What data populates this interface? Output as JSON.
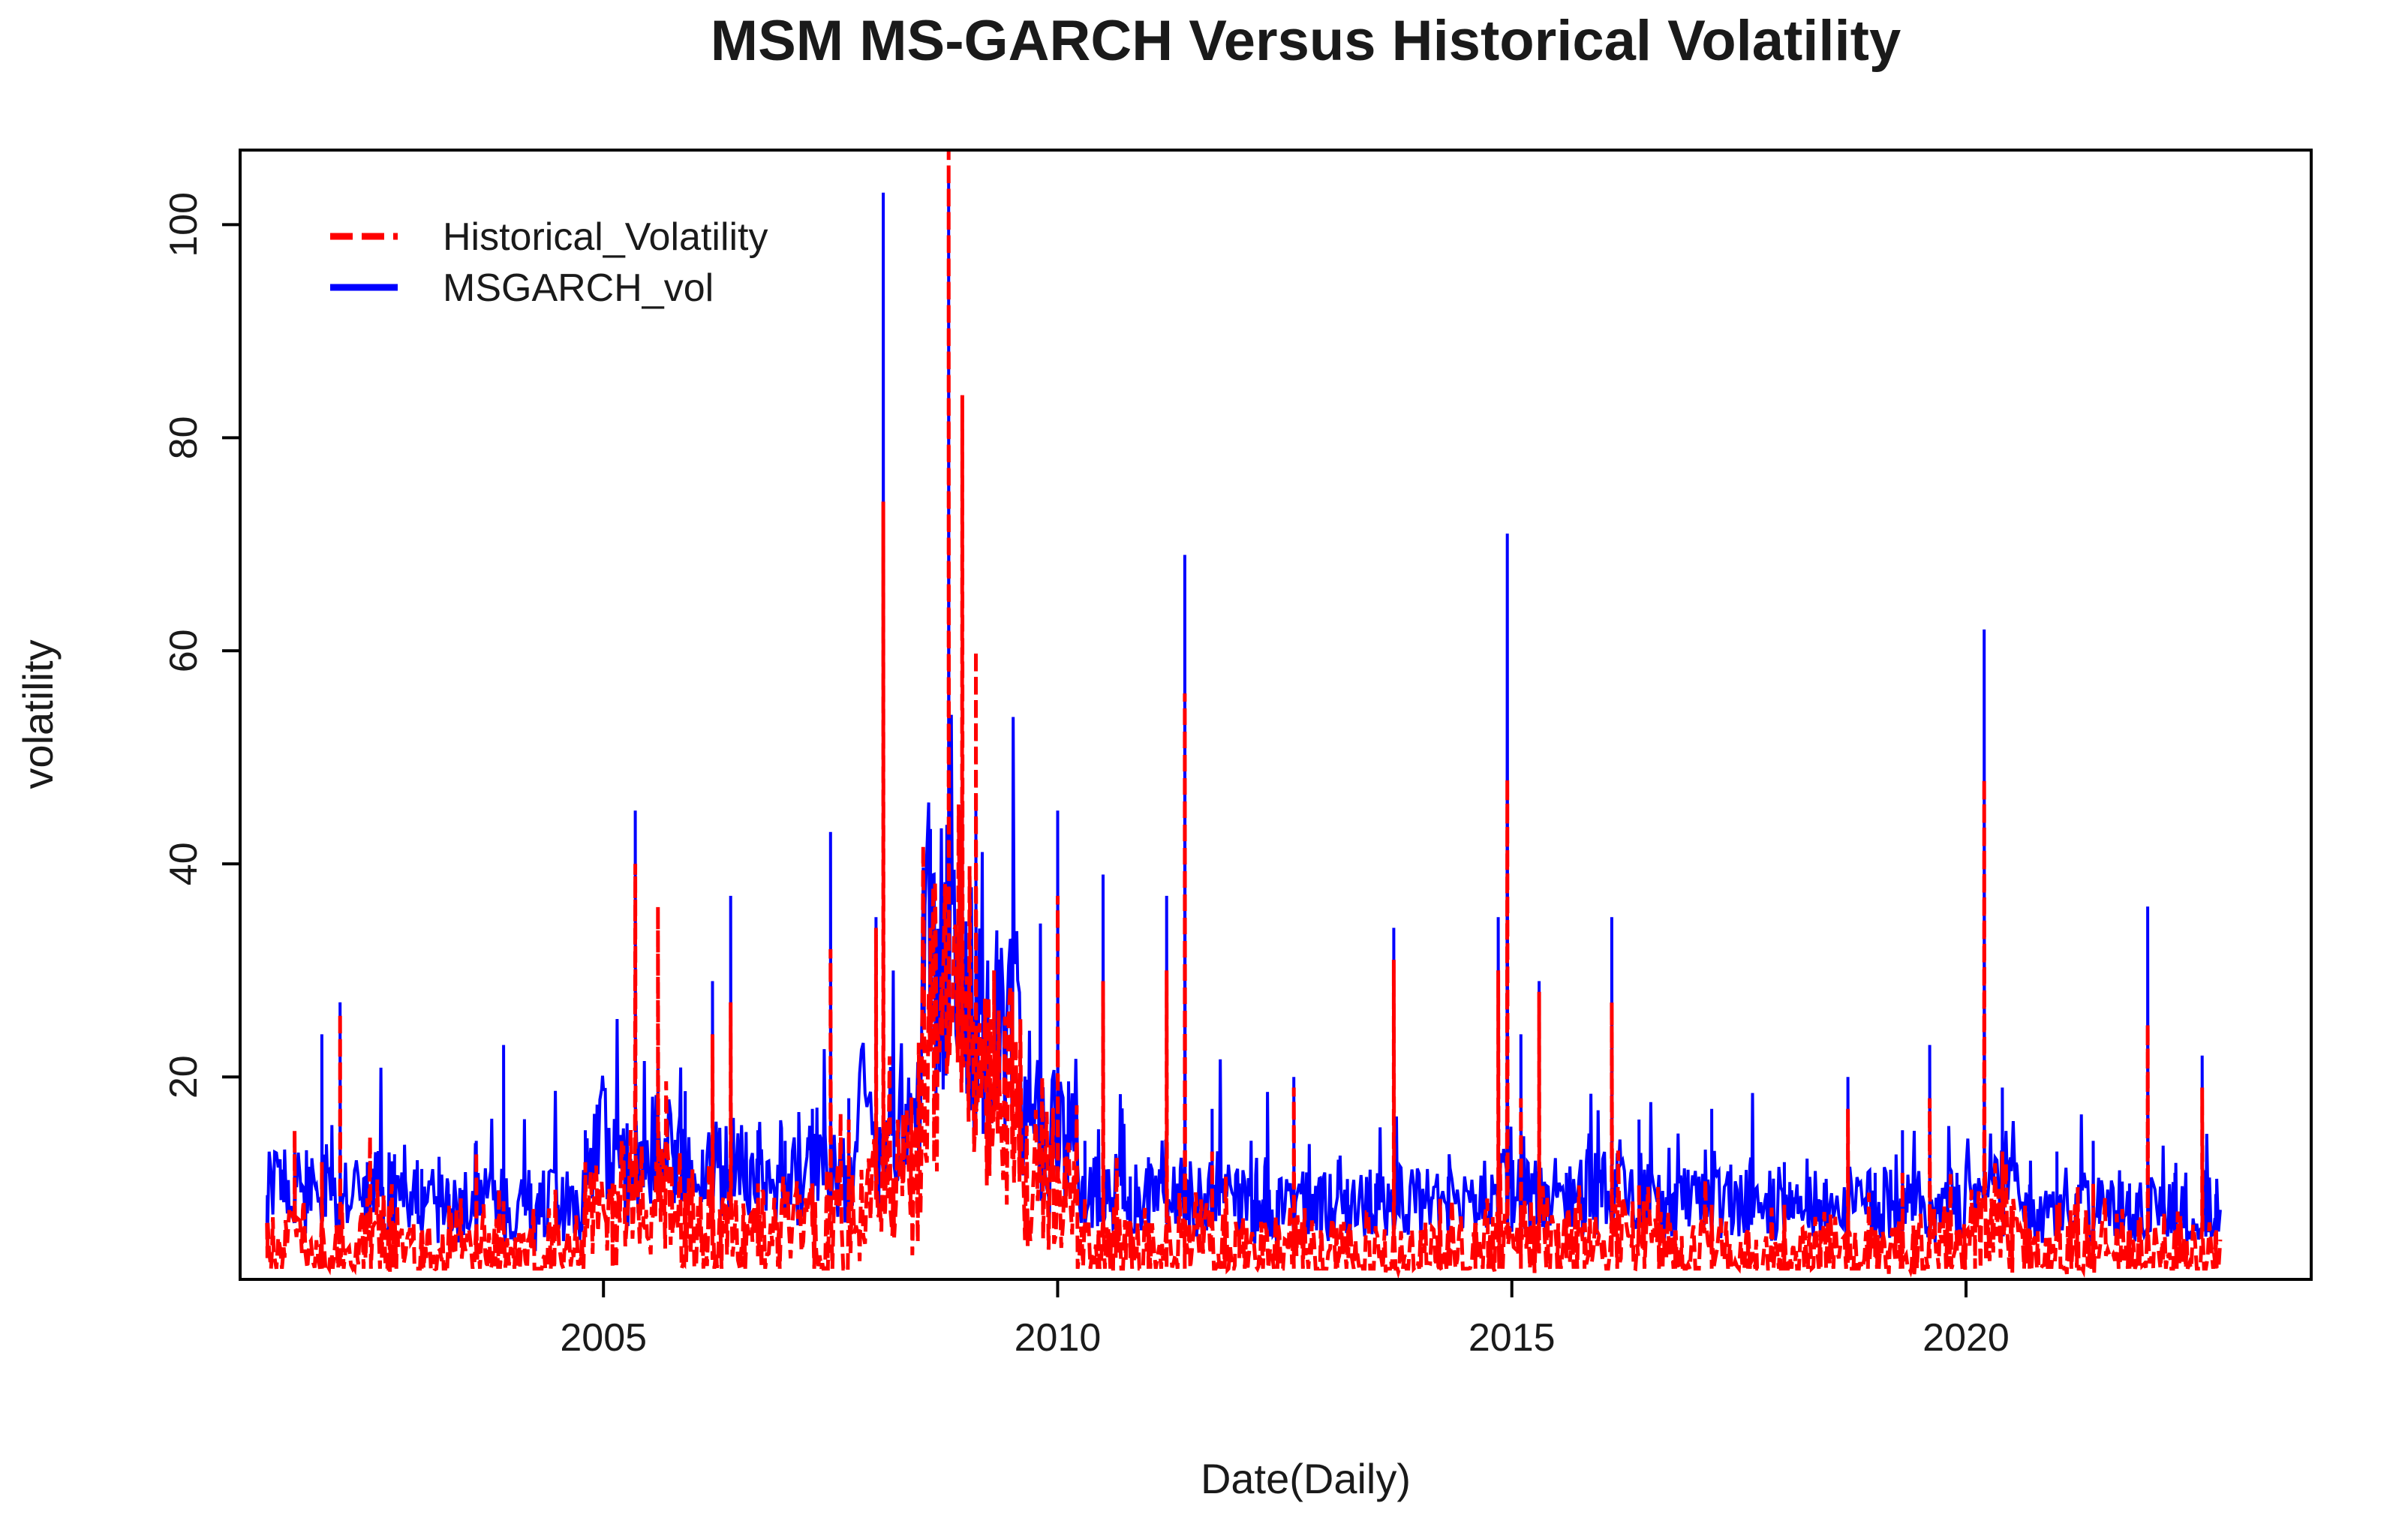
{
  "chart_data": {
    "type": "line",
    "title": "MSM MS-GARCH Versus Historical Volatility",
    "xlabel": "Date(Daily)",
    "ylabel": "volatility",
    "xlim": [
      2001.0,
      2023.8
    ],
    "ylim": [
      1,
      107
    ],
    "x_ticks": [
      {
        "value": 2005,
        "label": "2005"
      },
      {
        "value": 2010,
        "label": "2010"
      },
      {
        "value": 2015,
        "label": "2015"
      },
      {
        "value": 2020,
        "label": "2020"
      }
    ],
    "y_ticks": [
      {
        "value": 20,
        "label": "20"
      },
      {
        "value": 40,
        "label": "40"
      },
      {
        "value": 60,
        "label": "60"
      },
      {
        "value": 80,
        "label": "80"
      },
      {
        "value": 100,
        "label": "100"
      }
    ],
    "grid": false,
    "legend": {
      "position": "top-left",
      "entries": [
        {
          "name": "Historical_Volatility",
          "color": "#ff0000",
          "style": "dashed"
        },
        {
          "name": "MSGARCH_vol",
          "color": "#0000ff",
          "style": "solid"
        }
      ]
    },
    "series": [
      {
        "name": "MSGARCH_vol",
        "color": "#0000ff",
        "style": "solid",
        "x": [
          2001.3,
          2001.6,
          2001.9,
          2002.1,
          2002.4,
          2002.7,
          2003.0,
          2003.3,
          2003.6,
          2003.9,
          2004.2,
          2004.5,
          2004.8,
          2005.1,
          2005.35,
          2005.6,
          2005.9,
          2006.2,
          2006.4,
          2006.7,
          2007.0,
          2007.3,
          2007.5,
          2007.7,
          2008.0,
          2008.08,
          2008.3,
          2008.6,
          2008.8,
          2008.95,
          2009.1,
          2009.3,
          2009.5,
          2009.8,
          2010.0,
          2010.3,
          2010.5,
          2010.8,
          2011.0,
          2011.2,
          2011.4,
          2011.7,
          2012.0,
          2012.3,
          2012.6,
          2012.9,
          2013.2,
          2013.5,
          2013.7,
          2014.0,
          2014.3,
          2014.6,
          2014.85,
          2014.95,
          2015.1,
          2015.3,
          2015.6,
          2015.8,
          2016.1,
          2016.4,
          2016.8,
          2017.2,
          2017.6,
          2018.0,
          2018.4,
          2018.7,
          2019.0,
          2019.3,
          2019.6,
          2019.9,
          2020.1,
          2020.2,
          2020.4,
          2020.7,
          2021.0,
          2021.4,
          2021.8,
          2022.0,
          2022.3,
          2022.6,
          2022.75
        ],
        "values": [
          8,
          14,
          24,
          27,
          12,
          10,
          7,
          9,
          14,
          23,
          10,
          8,
          15,
          12,
          45,
          22,
          14,
          29,
          37,
          15,
          14,
          17,
          43,
          18,
          35,
          103,
          14,
          40,
          104,
          55,
          45,
          25,
          33,
          18,
          45,
          14,
          39,
          10,
          8,
          37,
          69,
          17,
          10,
          11,
          20,
          9,
          8,
          10,
          34,
          7,
          8,
          9,
          35,
          71,
          24,
          29,
          11,
          8,
          35,
          16,
          10,
          17,
          9,
          12,
          8,
          20,
          11,
          15,
          23,
          11,
          10,
          62,
          19,
          9,
          13,
          14,
          10,
          36,
          11,
          22,
          9
        ]
      },
      {
        "name": "Historical_Volatility",
        "color": "#ff0000",
        "style": "dashed",
        "x": [
          2001.3,
          2001.6,
          2001.9,
          2002.1,
          2002.4,
          2002.7,
          2003.0,
          2003.3,
          2003.6,
          2003.9,
          2004.2,
          2004.5,
          2004.8,
          2005.1,
          2005.35,
          2005.6,
          2005.9,
          2006.2,
          2006.4,
          2006.7,
          2007.0,
          2007.3,
          2007.5,
          2007.7,
          2008.0,
          2008.08,
          2008.3,
          2008.6,
          2008.8,
          2008.95,
          2009.1,
          2009.3,
          2009.5,
          2009.8,
          2010.0,
          2010.3,
          2010.5,
          2010.8,
          2011.0,
          2011.2,
          2011.4,
          2011.7,
          2012.0,
          2012.3,
          2012.6,
          2012.9,
          2013.2,
          2013.5,
          2013.7,
          2014.0,
          2014.3,
          2014.6,
          2014.85,
          2014.95,
          2015.1,
          2015.3,
          2015.6,
          2015.8,
          2016.1,
          2016.4,
          2016.8,
          2017.2,
          2017.6,
          2018.0,
          2018.4,
          2018.7,
          2019.0,
          2019.3,
          2019.6,
          2019.9,
          2020.1,
          2020.2,
          2020.4,
          2020.7,
          2021.0,
          2021.4,
          2021.8,
          2022.0,
          2022.3,
          2022.6,
          2022.75
        ],
        "values": [
          3,
          15,
          12,
          26,
          6,
          5,
          3,
          8,
          13,
          6,
          4,
          5,
          12,
          10,
          40,
          36,
          8,
          24,
          27,
          10,
          9,
          10,
          32,
          16,
          34,
          74,
          10,
          34,
          108,
          84,
          60,
          30,
          28,
          14,
          37,
          6,
          29,
          3,
          3,
          30,
          56,
          13,
          3,
          5,
          19,
          4,
          3,
          6,
          31,
          2,
          3,
          5,
          30,
          48,
          18,
          28,
          3,
          2,
          27,
          10,
          3,
          8,
          2,
          8,
          3,
          17,
          4,
          11,
          18,
          5,
          3,
          48,
          13,
          3,
          8,
          10,
          4,
          25,
          5,
          19,
          4
        ]
      }
    ]
  }
}
